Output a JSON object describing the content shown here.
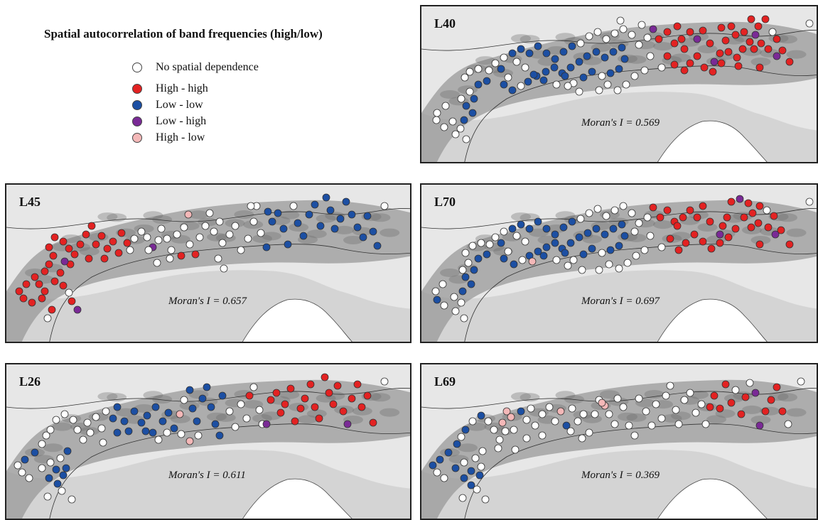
{
  "legend": {
    "title": "Spatial autocorrelation of band frequencies (high/low)",
    "items": [
      {
        "label": "No spatial dependence",
        "color": "#ffffff"
      },
      {
        "label": "High - high",
        "color": "#e32222"
      },
      {
        "label": "Low - low",
        "color": "#1c4fa3"
      },
      {
        "label": "Low - high",
        "color": "#7a2a96"
      },
      {
        "label": "High - low",
        "color": "#f4b8b8"
      }
    ]
  },
  "colors": {
    "white": "#ffffff",
    "red": "#e32222",
    "blue": "#1c4fa3",
    "purple": "#7a2a96",
    "pink": "#f4b8b8",
    "sea": "#cfcfcf",
    "land": "#e7e7e7",
    "mountain": "#8a8a8a"
  },
  "panels": [
    {
      "id": "L40",
      "label": "L40",
      "moran": "Moran's I = 0.569"
    },
    {
      "id": "L45",
      "label": "L45",
      "moran": "Moran's I = 0.657"
    },
    {
      "id": "L70",
      "label": "L70",
      "moran": "Moran's I = 0.697"
    },
    {
      "id": "L26",
      "label": "L26",
      "moran": "Moran's I = 0.611"
    },
    {
      "id": "L69",
      "label": "L69",
      "moran": "Moran's I = 0.369"
    }
  ]
}
